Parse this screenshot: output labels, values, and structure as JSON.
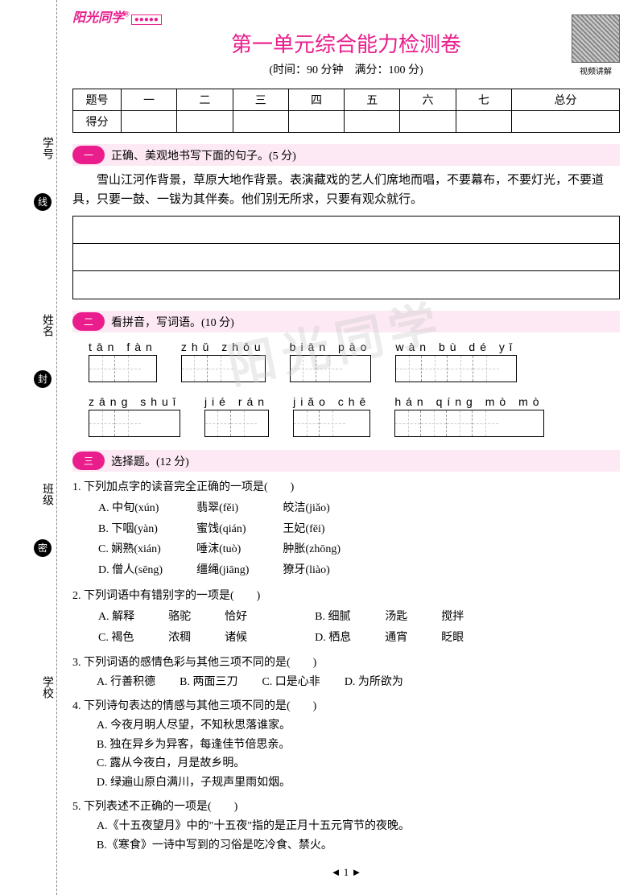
{
  "brand": {
    "name": "阳光同学",
    "tag": "●●●●●"
  },
  "header": {
    "title": "第一单元综合能力检测卷",
    "time": "(时间：90 分钟　满分：100 分)",
    "qr_label": "视频讲解"
  },
  "score": {
    "row1": "题号",
    "row2": "得分",
    "cols": [
      "一",
      "二",
      "三",
      "四",
      "五",
      "六",
      "七",
      "总分"
    ]
  },
  "s1": {
    "num": "一",
    "title": "正确、美观地书写下面的句子。",
    "points": "(5 分)",
    "text": "雪山江河作背景，草原大地作背景。表演藏戏的艺人们席地而唱，不要幕布，不要灯光，不要道具，只要一鼓、一钹为其伴奏。他们别无所求，只要有观众就行。"
  },
  "s2": {
    "num": "二",
    "title": "看拼音，写词语。",
    "points": "(10 分)",
    "row1": [
      {
        "py": "tān fàn",
        "n": 2
      },
      {
        "py": "zhǔ zhōu",
        "n": 2
      },
      {
        "py": "biān pào",
        "n": 2
      },
      {
        "py": "wàn bù dé yǐ",
        "n": 4
      }
    ],
    "row2": [
      {
        "py": "zāng shuǐ",
        "n": 2
      },
      {
        "py": "jié rán",
        "n": 2
      },
      {
        "py": "jiǎo chē",
        "n": 2
      },
      {
        "py": "hán qíng mò mò",
        "n": 4
      }
    ]
  },
  "s3": {
    "num": "三",
    "title": "选择题。",
    "points": "(12 分)",
    "q1": {
      "stem": "1. 下列加点字的读音完全正确的一项是(　　)",
      "opts": [
        [
          "A. 中旬(xún)",
          "翡翠(fěi)",
          "皎洁(jiǎo)"
        ],
        [
          "B. 下咽(yàn)",
          "蜜饯(qián)",
          "王妃(fēi)"
        ],
        [
          "C. 娴熟(xián)",
          "唾沫(tuò)",
          "肿胀(zhōng)"
        ],
        [
          "D. 僧人(sēng)",
          "缰绳(jiāng)",
          "獠牙(liào)"
        ]
      ]
    },
    "q2": {
      "stem": "2. 下列词语中有错别字的一项是(　　)",
      "opts": [
        [
          "A. 解释",
          "骆驼",
          "恰好",
          "",
          "B. 细腻",
          "汤匙",
          "搅拌"
        ],
        [
          "C. 褐色",
          "浓稠",
          "诸候",
          "",
          "D. 栖息",
          "通宵",
          "眨眼"
        ]
      ]
    },
    "q3": {
      "stem": "3. 下列词语的感情色彩与其他三项不同的是(　　)",
      "opts": [
        "A. 行善积德",
        "B. 两面三刀",
        "C. 口是心非",
        "D. 为所欲为"
      ]
    },
    "q4": {
      "stem": "4. 下列诗句表达的情感与其他三项不同的是(　　)",
      "opts": [
        "A. 今夜月明人尽望，不知秋思落谁家。",
        "B. 独在异乡为异客，每逢佳节倍思亲。",
        "C. 露从今夜白，月是故乡明。",
        "D. 绿遍山原白满川，子规声里雨如烟。"
      ]
    },
    "q5": {
      "stem": "5. 下列表述不正确的一项是(　　)",
      "opts": [
        "A.《十五夜望月》中的\"十五夜\"指的是正月十五元宵节的夜晚。",
        "B.《寒食》一诗中写到的习俗是吃冷食、禁火。"
      ]
    }
  },
  "side": {
    "l1": "学号",
    "c1": "线",
    "l2": "姓名",
    "c2": "封",
    "l3": "班级",
    "c3": "密",
    "l4": "学校"
  },
  "watermark": "阳光同学",
  "pagenum": "1"
}
